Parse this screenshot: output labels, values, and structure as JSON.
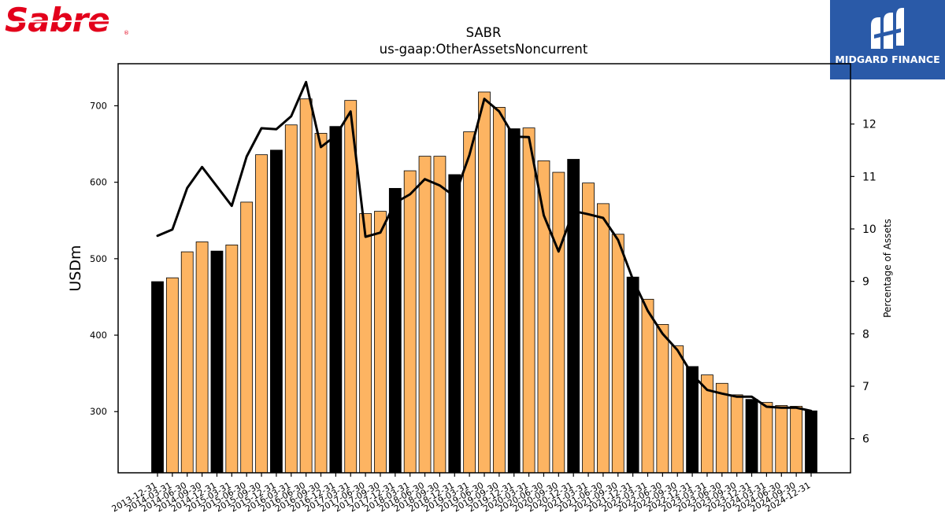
{
  "header": {
    "company_logo_text": "Sabre",
    "company_logo_mark": "®",
    "partner_logo_text": "MIDGARD FINANCE",
    "logo_color": "#e3001b",
    "partner_bg_color": "#2a5aa8"
  },
  "chart_data": {
    "type": "bar",
    "title": "SABR",
    "subtitle": "us-gaap:OtherAssetsNoncurrent",
    "xlabel": "",
    "ylabel": "USDm",
    "y2label": "Percentage of Assets",
    "ylim": [
      220,
      755
    ],
    "y2lim": [
      5.35,
      13.15
    ],
    "yticks": [
      300,
      400,
      500,
      600,
      700
    ],
    "y2ticks": [
      6,
      7,
      8,
      9,
      10,
      11,
      12
    ],
    "grid": false,
    "colors": {
      "bar": "#fdb462",
      "bar_highlight": "#000000",
      "line": "#000000"
    },
    "categories": [
      "2013-12-31",
      "2014-03-31",
      "2014-06-30",
      "2014-09-30",
      "2014-12-31",
      "2015-03-31",
      "2015-06-30",
      "2015-09-30",
      "2015-12-31",
      "2016-03-31",
      "2016-06-30",
      "2016-09-30",
      "2016-12-31",
      "2017-03-31",
      "2017-06-30",
      "2017-09-30",
      "2017-12-31",
      "2018-03-31",
      "2018-06-30",
      "2018-09-30",
      "2018-12-31",
      "2019-03-31",
      "2019-06-30",
      "2019-09-30",
      "2019-12-31",
      "2020-03-31",
      "2020-06-30",
      "2020-09-30",
      "2020-12-31",
      "2021-03-31",
      "2021-06-30",
      "2021-09-30",
      "2021-12-31",
      "2022-03-31",
      "2022-06-30",
      "2022-09-30",
      "2022-12-31",
      "2023-03-31",
      "2023-06-30",
      "2023-09-30",
      "2023-12-31",
      "2024-03-31",
      "2024-06-30",
      "2024-09-30",
      "2024-12-31"
    ],
    "series": [
      {
        "kind": "bar",
        "axis": "left",
        "values": [
          470,
          475,
          509,
          522,
          510,
          518,
          574,
          636,
          642,
          675,
          709,
          664,
          673,
          707,
          559,
          562,
          592,
          615,
          634,
          634,
          610,
          666,
          718,
          698,
          670,
          671,
          628,
          613,
          630,
          599,
          572,
          532,
          476,
          447,
          414,
          386,
          359,
          348,
          337,
          322,
          316,
          312,
          308,
          307,
          301
        ],
        "highlight_year_end": true
      },
      {
        "kind": "line",
        "axis": "right",
        "values": [
          9.87,
          9.99,
          10.78,
          11.18,
          10.81,
          10.44,
          11.38,
          11.92,
          11.9,
          12.15,
          12.8,
          11.56,
          11.78,
          12.24,
          9.85,
          9.93,
          10.5,
          10.66,
          10.95,
          10.83,
          10.62,
          11.41,
          12.48,
          12.24,
          11.76,
          11.75,
          10.26,
          9.57,
          10.34,
          10.28,
          10.21,
          9.79,
          9.04,
          8.44,
          8.0,
          7.69,
          7.22,
          6.93,
          6.86,
          6.8,
          6.8,
          6.61,
          6.59,
          6.59,
          6.53
        ]
      }
    ]
  }
}
